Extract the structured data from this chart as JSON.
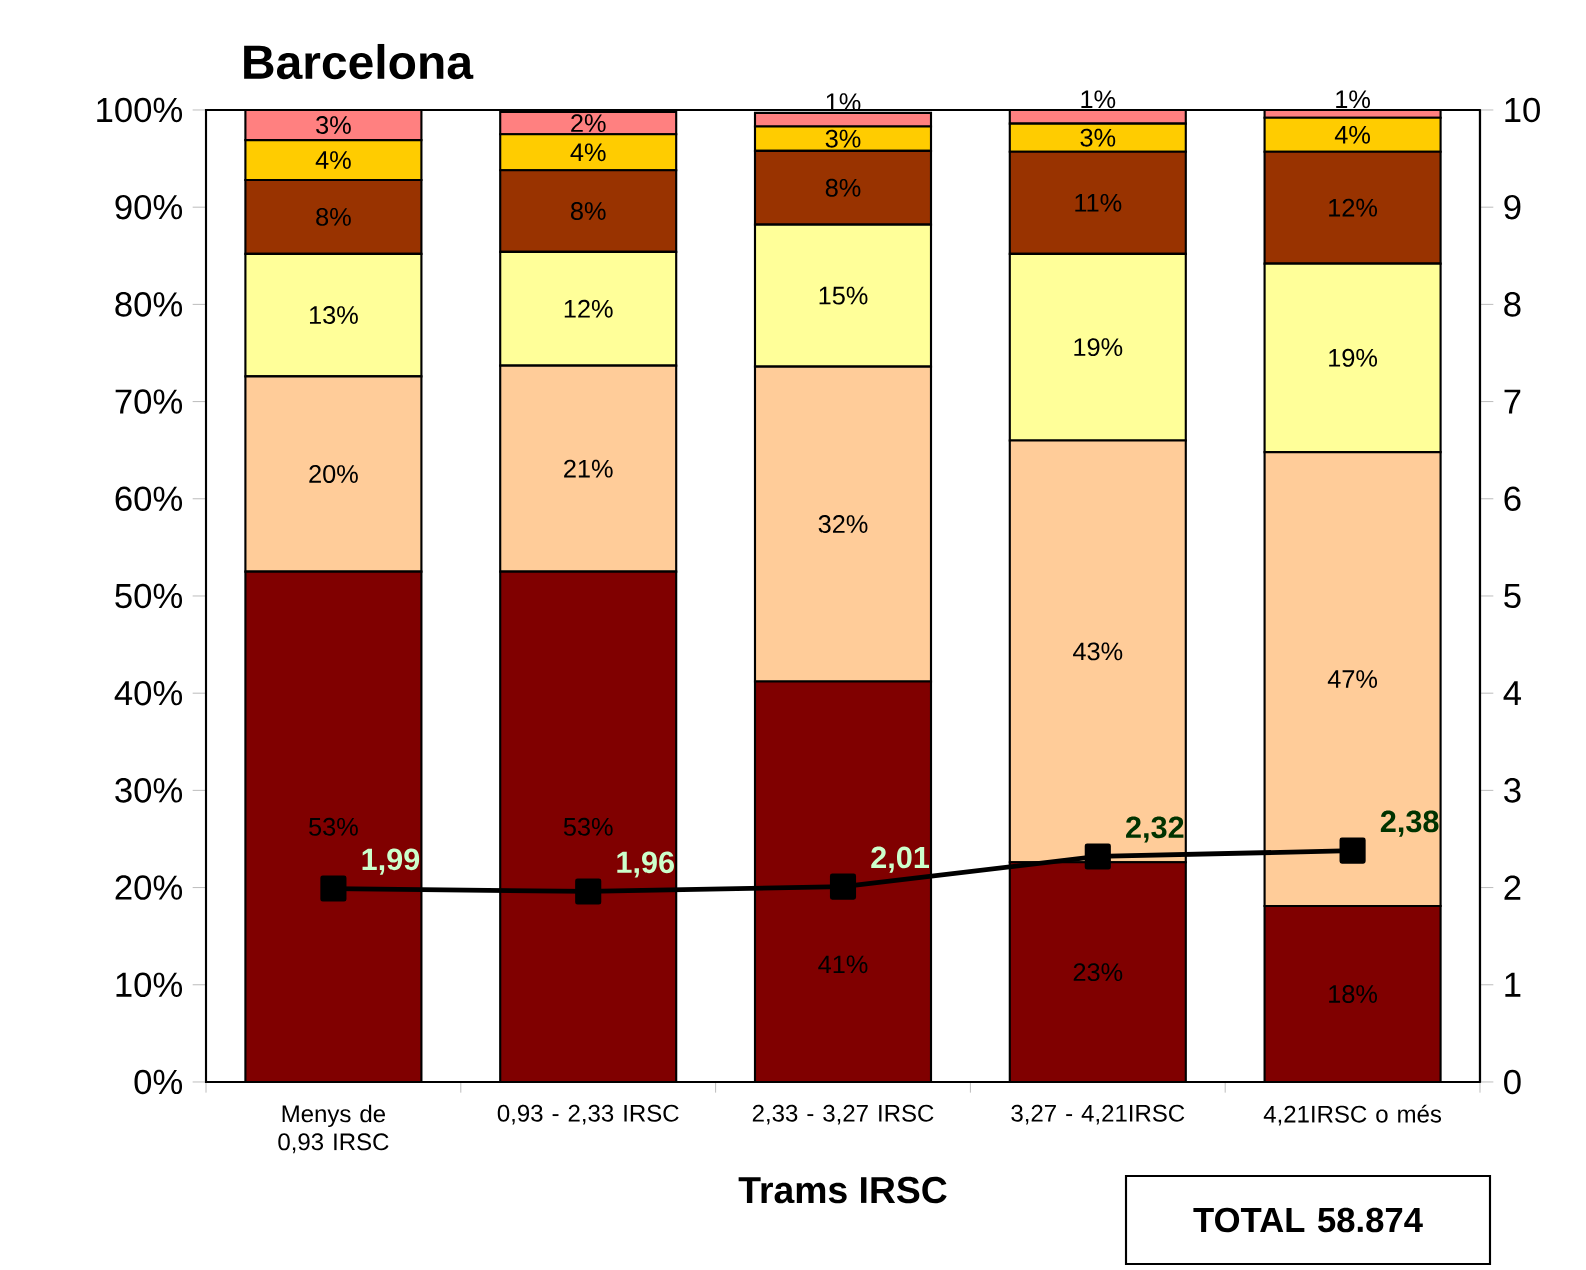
{
  "chart_data": {
    "type": "bar",
    "stacked": true,
    "title": "Barcelona",
    "xlabel": "Trams IRSC",
    "categories": [
      "Menys de 0,93 IRSC",
      "0,93 - 2,33 IRSC",
      "2,33 - 3,27 IRSC",
      "3,27 - 4,21IRSC",
      "4,21IRSC o més"
    ],
    "series": [
      {
        "color": "#800000",
        "values": [
          52.5,
          52.5,
          41.2,
          22.6,
          18.1
        ],
        "value_labels": [
          "53%",
          "53%",
          "41%",
          "23%",
          "18%"
        ]
      },
      {
        "color": "#ffcc99",
        "values": [
          20.1,
          21.2,
          32.4,
          43.4,
          46.7
        ],
        "value_labels": [
          "20%",
          "21%",
          "32%",
          "43%",
          "47%"
        ]
      },
      {
        "color": "#ffff99",
        "values": [
          12.6,
          11.7,
          14.6,
          19.2,
          19.4
        ],
        "value_labels": [
          "13%",
          "12%",
          "15%",
          "19%",
          "19%"
        ]
      },
      {
        "color": "#993300",
        "values": [
          7.6,
          8.4,
          7.6,
          10.5,
          11.5
        ],
        "value_labels": [
          "8%",
          "8%",
          "8%",
          "11%",
          "12%"
        ]
      },
      {
        "color": "#ffcc00",
        "values": [
          4.1,
          3.7,
          2.5,
          2.9,
          3.5
        ],
        "value_labels": [
          "4%",
          "4%",
          "3%",
          "3%",
          "4%"
        ]
      },
      {
        "color": "#ff8080",
        "values": [
          3.1,
          2.3,
          1.4,
          1.4,
          0.8
        ],
        "value_labels": [
          "3%",
          "2%",
          "1%",
          "1%",
          "1%"
        ]
      },
      {
        "type": "line",
        "axis": "y2",
        "color": "#000000",
        "marker": "square",
        "values": [
          1.99,
          1.96,
          2.01,
          2.32,
          2.38
        ],
        "value_labels": [
          "1,99",
          "1,96",
          "2,01",
          "2,32",
          "2,38"
        ]
      }
    ],
    "ylim": [
      0,
      100
    ],
    "yticks": [
      {
        "value": 0,
        "label": "0%"
      },
      {
        "value": 10,
        "label": "10%"
      },
      {
        "value": 20,
        "label": "20%"
      },
      {
        "value": 30,
        "label": "30%"
      },
      {
        "value": 40,
        "label": "40%"
      },
      {
        "value": 50,
        "label": "50%"
      },
      {
        "value": 60,
        "label": "60%"
      },
      {
        "value": 70,
        "label": "70%"
      },
      {
        "value": 80,
        "label": "80%"
      },
      {
        "value": 90,
        "label": "90%"
      },
      {
        "value": 100,
        "label": "100%"
      }
    ],
    "y2lim": [
      0,
      10
    ],
    "y2ticks": [
      0,
      1,
      2,
      3,
      4,
      5,
      6,
      7,
      8,
      9,
      10
    ],
    "annotations": [
      "TOTAL 58.874"
    ],
    "grid": false
  }
}
